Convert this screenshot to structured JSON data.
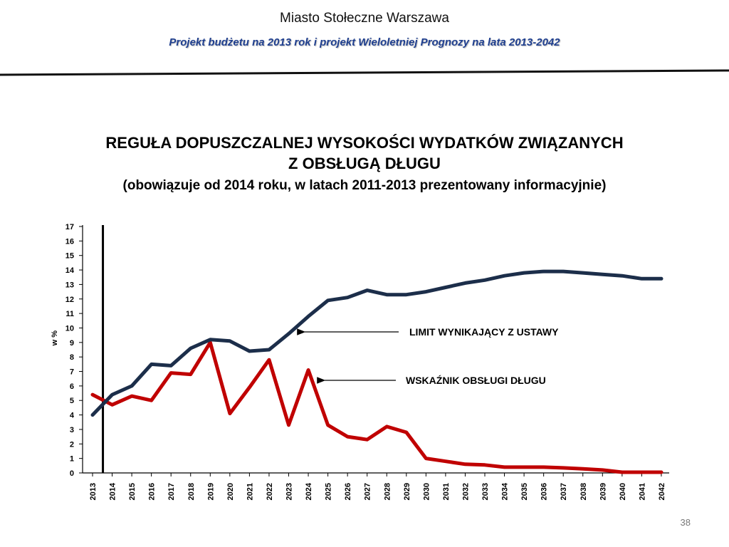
{
  "header": {
    "title": "Miasto Stołeczne Warszawa",
    "subtitle": "Projekt budżetu na 2013 rok i projekt Wieloletniej Prognozy na lata 2013-2042"
  },
  "slide": {
    "title_line1": "REGUŁA DOPUSZCZALNEJ WYSOKOŚCI WYDATKÓW ZWIĄZANYCH",
    "title_line2": "Z OBSŁUGĄ DŁUGU",
    "subtitle": "(obowiązuje od 2014 roku, w latach 2011-2013 prezentowany informacyjnie)",
    "page_number": "38"
  },
  "chart_data": {
    "type": "line",
    "categories": [
      "2013",
      "2014",
      "2015",
      "2016",
      "2017",
      "2018",
      "2019",
      "2020",
      "2021",
      "2022",
      "2023",
      "2024",
      "2025",
      "2026",
      "2027",
      "2028",
      "2029",
      "2030",
      "2031",
      "2032",
      "2033",
      "2034",
      "2035",
      "2036",
      "2037",
      "2038",
      "2039",
      "2040",
      "2041",
      "2042"
    ],
    "ylabel": "w %",
    "ylim": [
      0,
      17
    ],
    "yticks": [
      0,
      1,
      2,
      3,
      4,
      5,
      6,
      7,
      8,
      9,
      10,
      11,
      12,
      13,
      14,
      15,
      16,
      17
    ],
    "grid": false,
    "reference_line_at": "2014",
    "series": [
      {
        "name": "LIMIT WYNIKAJĄCY Z USTAWY",
        "color": "#1c2e4a",
        "values": [
          4.0,
          5.4,
          6.0,
          7.5,
          7.4,
          8.6,
          9.2,
          9.1,
          8.4,
          8.5,
          9.6,
          10.8,
          11.9,
          12.1,
          12.6,
          12.3,
          12.3,
          12.5,
          12.8,
          13.1,
          13.3,
          13.6,
          13.8,
          13.9,
          13.9,
          13.8,
          13.7,
          13.6,
          13.4,
          13.4
        ]
      },
      {
        "name": "WSKAŹNIK OBSŁUGI DŁUGU",
        "color": "#c00000",
        "values": [
          5.4,
          4.7,
          5.3,
          5.0,
          6.9,
          6.8,
          9.0,
          4.1,
          5.9,
          7.8,
          3.3,
          7.1,
          3.3,
          2.5,
          2.3,
          3.2,
          2.8,
          1.0,
          0.8,
          0.6,
          0.55,
          0.4,
          0.4,
          0.4,
          0.35,
          0.28,
          0.2,
          0.05,
          0.05,
          0.05
        ]
      }
    ]
  }
}
